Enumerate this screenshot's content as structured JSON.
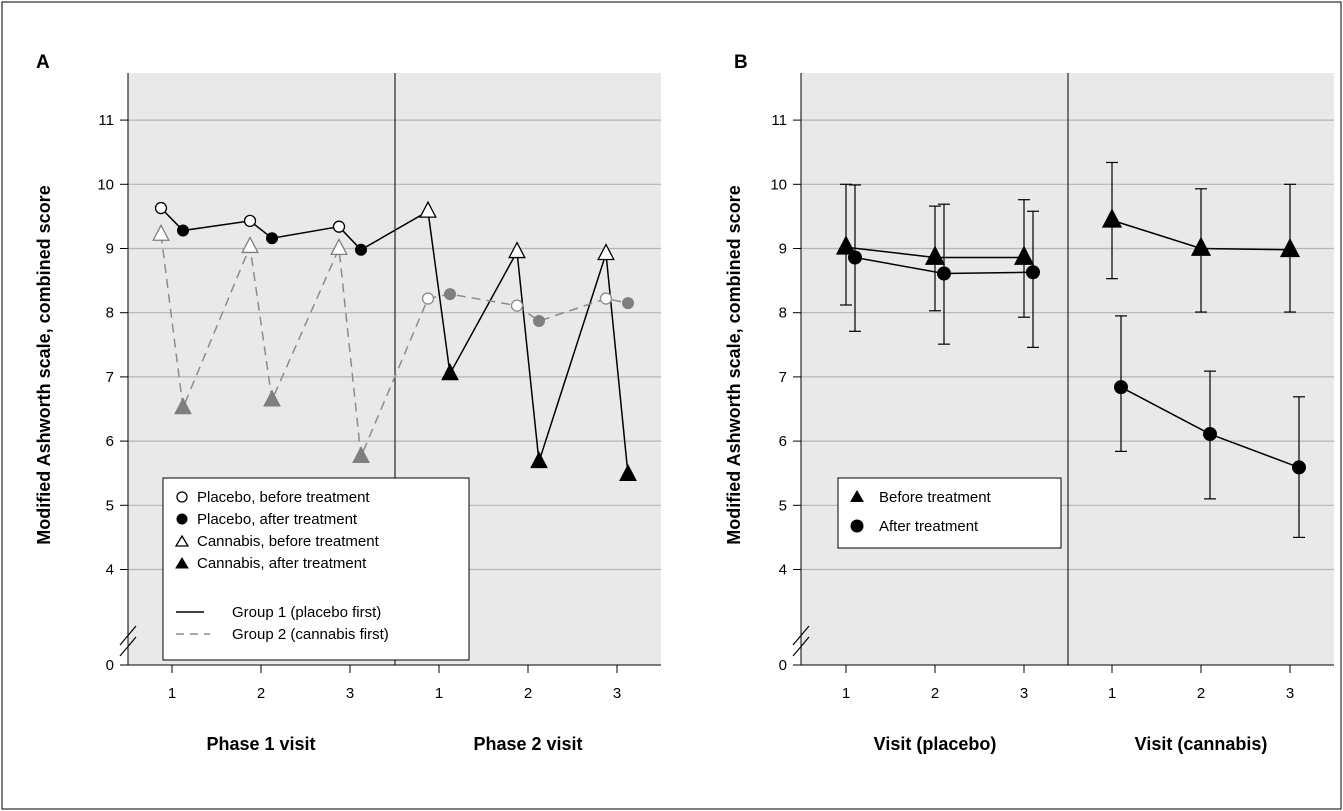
{
  "chart_data": [
    {
      "panel_label": "A",
      "type": "line",
      "ylabel": "Modified Ashworth scale, combined score",
      "y_ticks": [
        "0",
        "4",
        "5",
        "6",
        "7",
        "8",
        "9",
        "10",
        "11"
      ],
      "y_axis_break": "between 0 and 4",
      "grid": true,
      "x_groups": [
        {
          "label": "Phase 1 visit",
          "ticks": [
            "1",
            "2",
            "3"
          ]
        },
        {
          "label": "Phase 2 visit",
          "ticks": [
            "1",
            "2",
            "3"
          ]
        }
      ],
      "legend_position": "lower-left",
      "legend": {
        "markers": [
          "Placebo, before treatment",
          "Placebo, after treatment",
          "Cannabis, before treatment",
          "Cannabis, after treatment"
        ],
        "lines": [
          "Group 1 (placebo first)",
          "Group 2 (cannabis first)"
        ]
      },
      "series": [
        {
          "group": 1,
          "line_style": "solid",
          "points": [
            {
              "visit": 1,
              "phase": 1,
              "stage": "before",
              "treatment": "placebo",
              "y": 9.63
            },
            {
              "visit": 1,
              "phase": 1,
              "stage": "after",
              "treatment": "placebo",
              "y": 9.28
            },
            {
              "visit": 2,
              "phase": 1,
              "stage": "before",
              "treatment": "placebo",
              "y": 9.43
            },
            {
              "visit": 2,
              "phase": 1,
              "stage": "after",
              "treatment": "placebo",
              "y": 9.16
            },
            {
              "visit": 3,
              "phase": 1,
              "stage": "before",
              "treatment": "placebo",
              "y": 9.34
            },
            {
              "visit": 3,
              "phase": 1,
              "stage": "after",
              "treatment": "placebo",
              "y": 8.98
            },
            {
              "visit": 1,
              "phase": 2,
              "stage": "before",
              "treatment": "cannabis",
              "y": 9.58
            },
            {
              "visit": 1,
              "phase": 2,
              "stage": "after",
              "treatment": "cannabis",
              "y": 7.05
            },
            {
              "visit": 2,
              "phase": 2,
              "stage": "before",
              "treatment": "cannabis",
              "y": 8.95
            },
            {
              "visit": 2,
              "phase": 2,
              "stage": "after",
              "treatment": "cannabis",
              "y": 5.68
            },
            {
              "visit": 3,
              "phase": 2,
              "stage": "before",
              "treatment": "cannabis",
              "y": 8.92
            },
            {
              "visit": 3,
              "phase": 2,
              "stage": "after",
              "treatment": "cannabis",
              "y": 5.48
            }
          ]
        },
        {
          "group": 2,
          "line_style": "dashed",
          "points": [
            {
              "visit": 1,
              "phase": 1,
              "stage": "before",
              "treatment": "cannabis",
              "y": 9.22
            },
            {
              "visit": 1,
              "phase": 1,
              "stage": "after",
              "treatment": "cannabis",
              "y": 6.52
            },
            {
              "visit": 2,
              "phase": 1,
              "stage": "before",
              "treatment": "cannabis",
              "y": 9.03
            },
            {
              "visit": 2,
              "phase": 1,
              "stage": "after",
              "treatment": "cannabis",
              "y": 6.64
            },
            {
              "visit": 3,
              "phase": 1,
              "stage": "before",
              "treatment": "cannabis",
              "y": 9.0
            },
            {
              "visit": 3,
              "phase": 1,
              "stage": "after",
              "treatment": "cannabis",
              "y": 5.76
            },
            {
              "visit": 1,
              "phase": 2,
              "stage": "before",
              "treatment": "placebo",
              "y": 8.22
            },
            {
              "visit": 1,
              "phase": 2,
              "stage": "after",
              "treatment": "placebo",
              "y": 8.29
            },
            {
              "visit": 2,
              "phase": 2,
              "stage": "before",
              "treatment": "placebo",
              "y": 8.11
            },
            {
              "visit": 2,
              "phase": 2,
              "stage": "after",
              "treatment": "placebo",
              "y": 7.87
            },
            {
              "visit": 3,
              "phase": 2,
              "stage": "before",
              "treatment": "placebo",
              "y": 8.22
            },
            {
              "visit": 3,
              "phase": 2,
              "stage": "after",
              "treatment": "placebo",
              "y": 8.15
            }
          ]
        }
      ]
    },
    {
      "panel_label": "B",
      "type": "line",
      "ylabel": "Modified Ashworth scale, combined score",
      "y_ticks": [
        "0",
        "4",
        "5",
        "6",
        "7",
        "8",
        "9",
        "10",
        "11"
      ],
      "y_axis_break": "between 0 and 4",
      "grid": true,
      "x_groups": [
        {
          "label": "Visit (placebo)",
          "ticks": [
            "1",
            "2",
            "3"
          ]
        },
        {
          "label": "Visit (cannabis)",
          "ticks": [
            "1",
            "2",
            "3"
          ]
        }
      ],
      "legend_position": "middle-left",
      "legend": {
        "markers": [
          "Before treatment",
          "After treatment"
        ]
      },
      "series": [
        {
          "name": "Before treatment",
          "marker": "triangle",
          "condition": "placebo",
          "x": [
            1,
            2,
            3
          ],
          "y": [
            9.02,
            8.86,
            8.86
          ],
          "err_low": [
            8.12,
            8.03,
            7.93
          ],
          "err_high": [
            10.0,
            9.66,
            9.76
          ]
        },
        {
          "name": "After treatment",
          "marker": "circle",
          "condition": "placebo",
          "x": [
            1,
            2,
            3
          ],
          "y": [
            8.86,
            8.61,
            8.63
          ],
          "err_low": [
            7.71,
            7.51,
            7.46
          ],
          "err_high": [
            9.99,
            9.69,
            9.58
          ]
        },
        {
          "name": "Before treatment",
          "marker": "triangle",
          "condition": "cannabis",
          "x": [
            1,
            2,
            3
          ],
          "y": [
            9.44,
            9.0,
            8.98
          ],
          "err_low": [
            8.53,
            8.01,
            8.01
          ],
          "err_high": [
            10.34,
            9.93,
            10.0
          ]
        },
        {
          "name": "After treatment",
          "marker": "circle",
          "condition": "cannabis",
          "x": [
            1,
            2,
            3
          ],
          "y": [
            6.84,
            6.11,
            5.59
          ],
          "err_low": [
            5.84,
            5.1,
            4.5
          ],
          "err_high": [
            7.95,
            7.09,
            6.69
          ]
        }
      ]
    }
  ],
  "colors": {
    "panel_background": "#e9e9e9",
    "group1_line": "#000000",
    "group2_line": "#8c8c8c",
    "group2_marker_fill": "#7f7f7f",
    "gridline": "#b5b5b5"
  }
}
